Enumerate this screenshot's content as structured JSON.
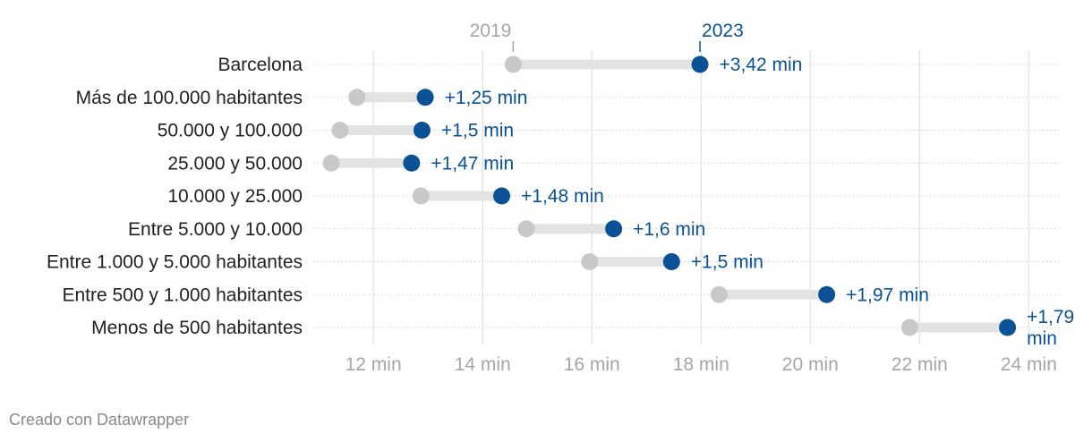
{
  "credit": "Creado con Datawrapper",
  "colors": {
    "start": "#c8c8c8",
    "end": "#0a5295",
    "connector": "#e3e3e3",
    "grid": "#e6e6e6",
    "row_rule": "#cfcfcf",
    "label": "#222222",
    "tick": "#a6a6a6"
  },
  "chart_data": {
    "type": "dot-range",
    "x_unit": "min",
    "xlim": [
      10.9,
      24.6
    ],
    "x_ticks": [
      12,
      14,
      16,
      18,
      20,
      22,
      24
    ],
    "x_tick_labels": [
      "12 min",
      "14 min",
      "16 min",
      "18 min",
      "20 min",
      "22 min",
      "24 min"
    ],
    "grid": true,
    "series": [
      {
        "name": "2019"
      },
      {
        "name": "2023"
      }
    ],
    "rows": [
      {
        "label": "Barcelona",
        "v2019": 14.56,
        "v2023": 17.98,
        "delta": "+3,42 min"
      },
      {
        "label": "Más de 100.000 habitantes",
        "v2019": 11.7,
        "v2023": 12.95,
        "delta": "+1,25 min"
      },
      {
        "label": "50.000 y 100.000",
        "v2019": 11.39,
        "v2023": 12.89,
        "delta": "+1,5 min"
      },
      {
        "label": "25.000 y 50.000",
        "v2019": 11.23,
        "v2023": 12.7,
        "delta": "+1,47 min"
      },
      {
        "label": "10.000 y 25.000",
        "v2019": 12.87,
        "v2023": 14.35,
        "delta": "+1,48 min"
      },
      {
        "label": "Entre 5.000 y 10.000",
        "v2019": 14.8,
        "v2023": 16.4,
        "delta": "+1,6 min"
      },
      {
        "label": "Entre 1.000 y 5.000 habitantes",
        "v2019": 15.96,
        "v2023": 17.46,
        "delta": "+1,5 min"
      },
      {
        "label": "Entre 500 y 1.000 habitantes",
        "v2019": 18.33,
        "v2023": 20.3,
        "delta": "+1,97 min"
      },
      {
        "label": "Menos de 500 habitantes",
        "v2019": 21.82,
        "v2023": 23.61,
        "delta": "+1,79 min"
      }
    ]
  }
}
